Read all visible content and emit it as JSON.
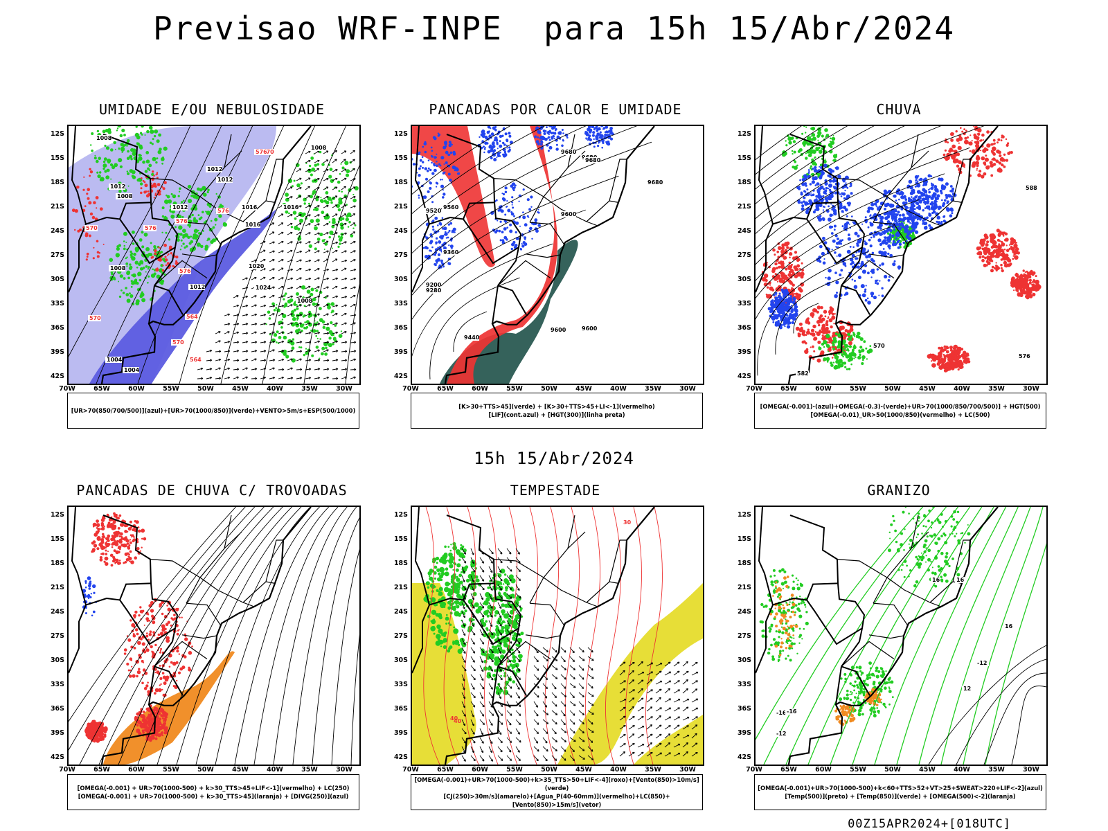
{
  "title": "Previsao WRF-INPE  para 15h 15/Abr/2024",
  "subtitle": "15h 15/Abr/2024",
  "footer": "00Z15APR2024+[018UTC]",
  "lat_labels": [
    "12S",
    "15S",
    "18S",
    "21S",
    "24S",
    "27S",
    "30S",
    "33S",
    "36S",
    "39S",
    "42S"
  ],
  "lon_labels": [
    "70W",
    "65W",
    "60W",
    "55W",
    "50W",
    "45W",
    "40W",
    "35W",
    "30W"
  ],
  "colors": {
    "humidity_blue": "#5c5ce0",
    "humidity_lightblue": "#b4b4f0",
    "green": "#22cc22",
    "red": "#ee3333",
    "dark_teal": "#2a5a52",
    "blue": "#2244ee",
    "orange": "#f08a20",
    "yellow": "#e6dc2c"
  },
  "panels": [
    {
      "id": "umidade",
      "title": "UMIDADE E/OU NEBULOSIDADE",
      "legend": [
        "[UR>70(850/700/500)](azul)+[UR>70(1000/850)](verde)+VENTO>5m/s+ESP(500/1000)"
      ],
      "isobar_labels": [
        "1008",
        "1012",
        "1012",
        "1012",
        "1012",
        "1008",
        "1016",
        "1016",
        "1016",
        "1008",
        "1020",
        "1008",
        "1004",
        "1024",
        "1004",
        "1008",
        "1012"
      ],
      "red_labels": [
        "570",
        "576",
        "576",
        "576",
        "570",
        "576",
        "576",
        "570",
        "564",
        "570",
        "564"
      ]
    },
    {
      "id": "pancadas-calor",
      "title": "PANCADAS POR CALOR E UMIDADE",
      "legend": [
        "[K>30+TTS>45](verde) + [K>30+TTS>45+LI<-1](vermelho)",
        "[LIF](cont.azul) + [HGT(300)](linha preta)"
      ],
      "height_labels": [
        "9680",
        "9680",
        "9680",
        "9680",
        "9600",
        "9520",
        "9560",
        "9280",
        "9360",
        "9600",
        "9200",
        "9440",
        "9600"
      ]
    },
    {
      "id": "chuva",
      "title": "CHUVA",
      "legend": [
        "[OMEGA(-0.001)-(azul)+OMEGA(-0.3)-(verde)+UR>70(1000/850/700/500)] + HGT(500)",
        "[OMEGA(-0.01)_UR>50(1000/850)(vermelho) + LC(500)"
      ],
      "height_labels": [
        "588",
        "582",
        "576",
        "570",
        "564"
      ]
    },
    {
      "id": "trovoadas",
      "title": "PANCADAS DE CHUVA C/ TROVOADAS",
      "legend": [
        "[OMEGA(-0.001) + UR>70(1000-500) + k>30_TTS>45+LIF<-1](vermelho) + LC(250)",
        "[OMEGA(-0.001) + UR>70(1000-500) + k>30_TTS>45](laranja) + [DIVG(250)](azul)"
      ]
    },
    {
      "id": "tempestade",
      "title": "TEMPESTADE",
      "legend": [
        "[OMEGA(-0.001)+UR>70(1000-500)+k>35_TTS>50+LIF<-4](roxo)+[Vento(850)>10m/s](verde)",
        "[CJ(250)>30m/s](amarelo)+[Agua_P(40-60mm)](vermelho)+LC(850)+[Vento(850)>15m/s](vetor)"
      ],
      "red_labels": [
        "40",
        "40",
        "30"
      ]
    },
    {
      "id": "granizo",
      "title": "GRANIZO",
      "legend": [
        "[OMEGA(-0.001)+UR>70(1000-500)+k<60+TTS>52+VT>25+SWEAT>220+LIF<-2](azul)",
        "[Temp(500)](preto) + [Temp(850)](verde) + [OMEGA(500)<-2](laranja)"
      ],
      "temp_labels": [
        "-12",
        "-12",
        "12",
        "16",
        "16",
        "-16",
        "16",
        "-16"
      ]
    }
  ]
}
